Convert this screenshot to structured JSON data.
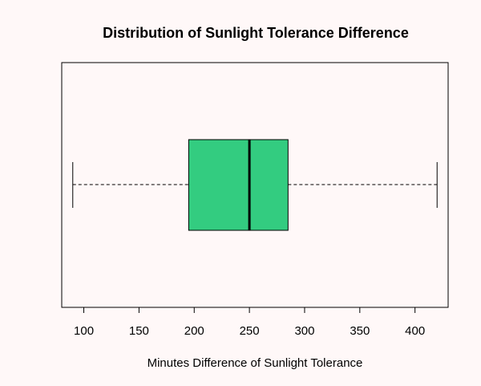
{
  "colors": {
    "background": "#FFF8F8",
    "box_fill": "#33CC80",
    "stroke": "#000000"
  },
  "chart_data": {
    "type": "boxplot",
    "orientation": "horizontal",
    "title": "Distribution of Sunlight Tolerance Difference",
    "xlabel": "Minutes Difference of Sunlight Tolerance",
    "ylabel": "",
    "xlim": [
      80,
      430
    ],
    "xticks": [
      100,
      150,
      200,
      250,
      300,
      350,
      400
    ],
    "grid": false,
    "legend": "none",
    "box": {
      "min": 90,
      "q1": 195,
      "median": 250,
      "q3": 285,
      "max": 420
    }
  }
}
